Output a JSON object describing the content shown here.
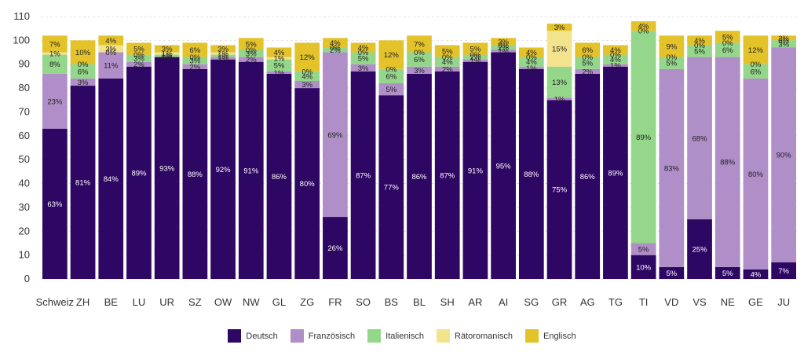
{
  "chart_data": {
    "type": "bar",
    "stacked": true,
    "title": "",
    "xlabel": "",
    "ylabel": "",
    "ylim": [
      0,
      110
    ],
    "yticks": [
      0,
      10,
      20,
      30,
      40,
      50,
      60,
      70,
      80,
      90,
      100,
      110
    ],
    "grid": true,
    "legend_position": "bottom",
    "categories": [
      "Schweiz",
      "ZH",
      "BE",
      "LU",
      "UR",
      "SZ",
      "OW",
      "NW",
      "GL",
      "ZG",
      "FR",
      "SO",
      "BS",
      "BL",
      "SH",
      "AR",
      "AI",
      "SG",
      "GR",
      "AG",
      "TG",
      "TI",
      "VD",
      "VS",
      "NE",
      "GE",
      "JU"
    ],
    "series": [
      {
        "name": "Deutsch",
        "color": "#2e0664",
        "label_color": "#ffffff",
        "values": [
          63,
          81,
          84,
          89,
          93,
          88,
          92,
          91,
          86,
          80,
          26,
          87,
          77,
          86,
          87,
          91,
          95,
          88,
          75,
          86,
          89,
          10,
          5,
          25,
          5,
          4,
          7
        ]
      },
      {
        "name": "Französisch",
        "color": "#b08ec8",
        "label_color": "#222222",
        "values": [
          23,
          3,
          11,
          2,
          0,
          2,
          1,
          2,
          1,
          3,
          69,
          3,
          5,
          3,
          2,
          1,
          1,
          1,
          1,
          2,
          1,
          5,
          83,
          68,
          88,
          80,
          90
        ]
      },
      {
        "name": "Italienisch",
        "color": "#94d68a",
        "label_color": "#222222",
        "values": [
          8,
          6,
          0,
          3,
          1,
          3,
          1,
          3,
          5,
          4,
          2,
          5,
          6,
          6,
          4,
          2,
          2,
          4,
          13,
          5,
          4,
          89,
          5,
          5,
          6,
          6,
          3
        ]
      },
      {
        "name": "Rätoromanisch",
        "color": "#f3e38c",
        "label_color": "#222222",
        "values": [
          1,
          0,
          3,
          0,
          1,
          0,
          1,
          0,
          1,
          0,
          0,
          0,
          0,
          0,
          0,
          0,
          0,
          0,
          15,
          0,
          0,
          0,
          0,
          0,
          0,
          0,
          0
        ]
      },
      {
        "name": "Englisch",
        "color": "#e3c22a",
        "label_color": "#222222",
        "values": [
          7,
          10,
          4,
          5,
          3,
          6,
          3,
          5,
          4,
          12,
          4,
          4,
          12,
          7,
          5,
          5,
          3,
          4,
          3,
          6,
          4,
          4,
          9,
          4,
          5,
          12,
          2
        ]
      }
    ]
  }
}
